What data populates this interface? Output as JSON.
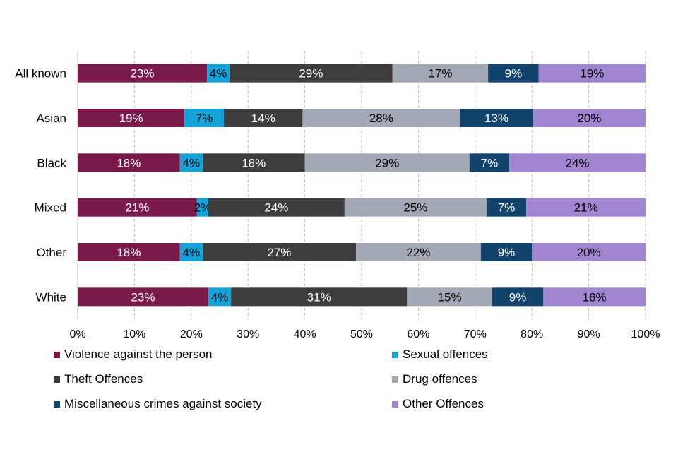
{
  "chart_data": {
    "type": "bar",
    "orientation": "horizontal",
    "stacked": true,
    "categories": [
      "All known",
      "Asian",
      "Black",
      "Mixed",
      "Other",
      "White"
    ],
    "series": [
      {
        "name": "Violence against the person",
        "color": "#7a1a4a",
        "label_color": "#ffffff",
        "values": [
          23,
          19,
          18,
          21,
          18,
          23
        ]
      },
      {
        "name": "Sexual offences",
        "color": "#12a4d9",
        "label_color": "#000000",
        "values": [
          4,
          7,
          4,
          2,
          4,
          4
        ]
      },
      {
        "name": "Theft Offences",
        "color": "#3d3d3d",
        "label_color": "#ffffff",
        "values": [
          29,
          14,
          18,
          24,
          27,
          31
        ]
      },
      {
        "name": "Drug offences",
        "color": "#a3a8b4",
        "label_color": "#000000",
        "values": [
          17,
          28,
          29,
          25,
          22,
          15
        ]
      },
      {
        "name": "Miscellaneous crimes against society",
        "color": "#12436d",
        "label_color": "#ffffff",
        "values": [
          9,
          13,
          7,
          7,
          9,
          9
        ]
      },
      {
        "name": "Other Offences",
        "color": "#a086d0",
        "label_color": "#000000",
        "values": [
          19,
          20,
          24,
          21,
          20,
          18
        ]
      }
    ],
    "xlim": [
      0,
      100
    ],
    "xticks": [
      "0%",
      "10%",
      "20%",
      "30%",
      "40%",
      "50%",
      "60%",
      "70%",
      "80%",
      "90%",
      "100%"
    ],
    "grid": "vertical-dashed",
    "legend_position": "bottom"
  }
}
